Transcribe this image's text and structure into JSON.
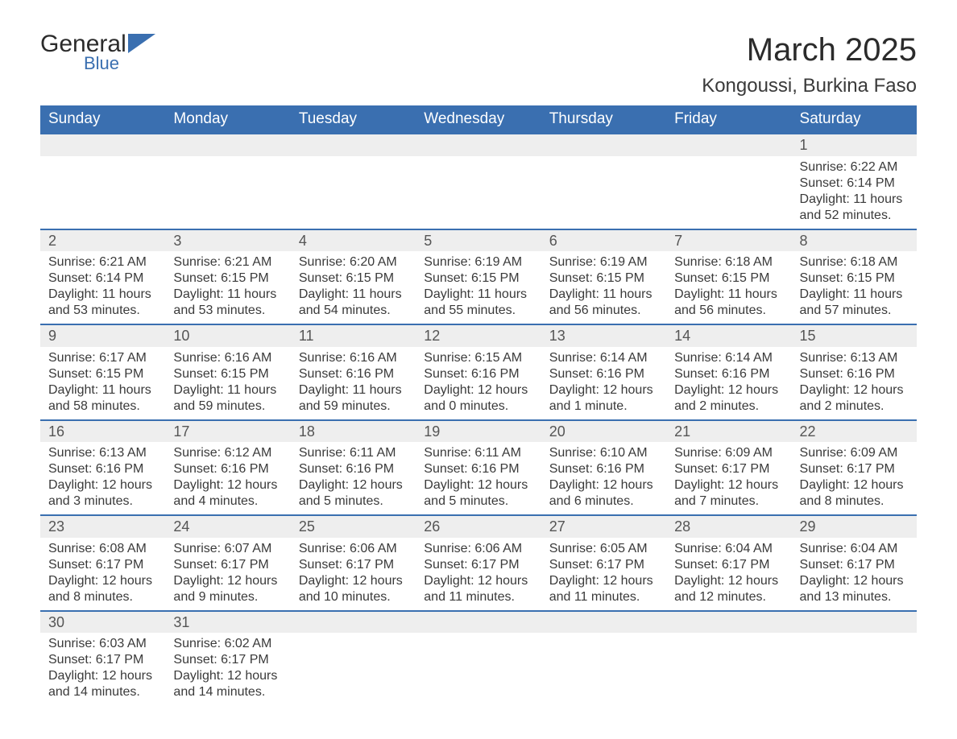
{
  "brand": {
    "main": "General",
    "sub": "Blue",
    "icon_color": "#3a6fb0"
  },
  "title": "March 2025",
  "location": "Kongoussi, Burkina Faso",
  "colors": {
    "header_bg": "#3a6fb0",
    "header_text": "#ffffff",
    "daynum_bg": "#eeeeee",
    "border": "#3a6fb0",
    "body_text": "#3a3a3a"
  },
  "weekdays": [
    "Sunday",
    "Monday",
    "Tuesday",
    "Wednesday",
    "Thursday",
    "Friday",
    "Saturday"
  ],
  "weeks": [
    [
      null,
      null,
      null,
      null,
      null,
      null,
      {
        "d": "1",
        "sr": "Sunrise: 6:22 AM",
        "ss": "Sunset: 6:14 PM",
        "dl1": "Daylight: 11 hours",
        "dl2": "and 52 minutes."
      }
    ],
    [
      {
        "d": "2",
        "sr": "Sunrise: 6:21 AM",
        "ss": "Sunset: 6:14 PM",
        "dl1": "Daylight: 11 hours",
        "dl2": "and 53 minutes."
      },
      {
        "d": "3",
        "sr": "Sunrise: 6:21 AM",
        "ss": "Sunset: 6:15 PM",
        "dl1": "Daylight: 11 hours",
        "dl2": "and 53 minutes."
      },
      {
        "d": "4",
        "sr": "Sunrise: 6:20 AM",
        "ss": "Sunset: 6:15 PM",
        "dl1": "Daylight: 11 hours",
        "dl2": "and 54 minutes."
      },
      {
        "d": "5",
        "sr": "Sunrise: 6:19 AM",
        "ss": "Sunset: 6:15 PM",
        "dl1": "Daylight: 11 hours",
        "dl2": "and 55 minutes."
      },
      {
        "d": "6",
        "sr": "Sunrise: 6:19 AM",
        "ss": "Sunset: 6:15 PM",
        "dl1": "Daylight: 11 hours",
        "dl2": "and 56 minutes."
      },
      {
        "d": "7",
        "sr": "Sunrise: 6:18 AM",
        "ss": "Sunset: 6:15 PM",
        "dl1": "Daylight: 11 hours",
        "dl2": "and 56 minutes."
      },
      {
        "d": "8",
        "sr": "Sunrise: 6:18 AM",
        "ss": "Sunset: 6:15 PM",
        "dl1": "Daylight: 11 hours",
        "dl2": "and 57 minutes."
      }
    ],
    [
      {
        "d": "9",
        "sr": "Sunrise: 6:17 AM",
        "ss": "Sunset: 6:15 PM",
        "dl1": "Daylight: 11 hours",
        "dl2": "and 58 minutes."
      },
      {
        "d": "10",
        "sr": "Sunrise: 6:16 AM",
        "ss": "Sunset: 6:15 PM",
        "dl1": "Daylight: 11 hours",
        "dl2": "and 59 minutes."
      },
      {
        "d": "11",
        "sr": "Sunrise: 6:16 AM",
        "ss": "Sunset: 6:16 PM",
        "dl1": "Daylight: 11 hours",
        "dl2": "and 59 minutes."
      },
      {
        "d": "12",
        "sr": "Sunrise: 6:15 AM",
        "ss": "Sunset: 6:16 PM",
        "dl1": "Daylight: 12 hours",
        "dl2": "and 0 minutes."
      },
      {
        "d": "13",
        "sr": "Sunrise: 6:14 AM",
        "ss": "Sunset: 6:16 PM",
        "dl1": "Daylight: 12 hours",
        "dl2": "and 1 minute."
      },
      {
        "d": "14",
        "sr": "Sunrise: 6:14 AM",
        "ss": "Sunset: 6:16 PM",
        "dl1": "Daylight: 12 hours",
        "dl2": "and 2 minutes."
      },
      {
        "d": "15",
        "sr": "Sunrise: 6:13 AM",
        "ss": "Sunset: 6:16 PM",
        "dl1": "Daylight: 12 hours",
        "dl2": "and 2 minutes."
      }
    ],
    [
      {
        "d": "16",
        "sr": "Sunrise: 6:13 AM",
        "ss": "Sunset: 6:16 PM",
        "dl1": "Daylight: 12 hours",
        "dl2": "and 3 minutes."
      },
      {
        "d": "17",
        "sr": "Sunrise: 6:12 AM",
        "ss": "Sunset: 6:16 PM",
        "dl1": "Daylight: 12 hours",
        "dl2": "and 4 minutes."
      },
      {
        "d": "18",
        "sr": "Sunrise: 6:11 AM",
        "ss": "Sunset: 6:16 PM",
        "dl1": "Daylight: 12 hours",
        "dl2": "and 5 minutes."
      },
      {
        "d": "19",
        "sr": "Sunrise: 6:11 AM",
        "ss": "Sunset: 6:16 PM",
        "dl1": "Daylight: 12 hours",
        "dl2": "and 5 minutes."
      },
      {
        "d": "20",
        "sr": "Sunrise: 6:10 AM",
        "ss": "Sunset: 6:16 PM",
        "dl1": "Daylight: 12 hours",
        "dl2": "and 6 minutes."
      },
      {
        "d": "21",
        "sr": "Sunrise: 6:09 AM",
        "ss": "Sunset: 6:17 PM",
        "dl1": "Daylight: 12 hours",
        "dl2": "and 7 minutes."
      },
      {
        "d": "22",
        "sr": "Sunrise: 6:09 AM",
        "ss": "Sunset: 6:17 PM",
        "dl1": "Daylight: 12 hours",
        "dl2": "and 8 minutes."
      }
    ],
    [
      {
        "d": "23",
        "sr": "Sunrise: 6:08 AM",
        "ss": "Sunset: 6:17 PM",
        "dl1": "Daylight: 12 hours",
        "dl2": "and 8 minutes."
      },
      {
        "d": "24",
        "sr": "Sunrise: 6:07 AM",
        "ss": "Sunset: 6:17 PM",
        "dl1": "Daylight: 12 hours",
        "dl2": "and 9 minutes."
      },
      {
        "d": "25",
        "sr": "Sunrise: 6:06 AM",
        "ss": "Sunset: 6:17 PM",
        "dl1": "Daylight: 12 hours",
        "dl2": "and 10 minutes."
      },
      {
        "d": "26",
        "sr": "Sunrise: 6:06 AM",
        "ss": "Sunset: 6:17 PM",
        "dl1": "Daylight: 12 hours",
        "dl2": "and 11 minutes."
      },
      {
        "d": "27",
        "sr": "Sunrise: 6:05 AM",
        "ss": "Sunset: 6:17 PM",
        "dl1": "Daylight: 12 hours",
        "dl2": "and 11 minutes."
      },
      {
        "d": "28",
        "sr": "Sunrise: 6:04 AM",
        "ss": "Sunset: 6:17 PM",
        "dl1": "Daylight: 12 hours",
        "dl2": "and 12 minutes."
      },
      {
        "d": "29",
        "sr": "Sunrise: 6:04 AM",
        "ss": "Sunset: 6:17 PM",
        "dl1": "Daylight: 12 hours",
        "dl2": "and 13 minutes."
      }
    ],
    [
      {
        "d": "30",
        "sr": "Sunrise: 6:03 AM",
        "ss": "Sunset: 6:17 PM",
        "dl1": "Daylight: 12 hours",
        "dl2": "and 14 minutes."
      },
      {
        "d": "31",
        "sr": "Sunrise: 6:02 AM",
        "ss": "Sunset: 6:17 PM",
        "dl1": "Daylight: 12 hours",
        "dl2": "and 14 minutes."
      },
      null,
      null,
      null,
      null,
      null
    ]
  ]
}
